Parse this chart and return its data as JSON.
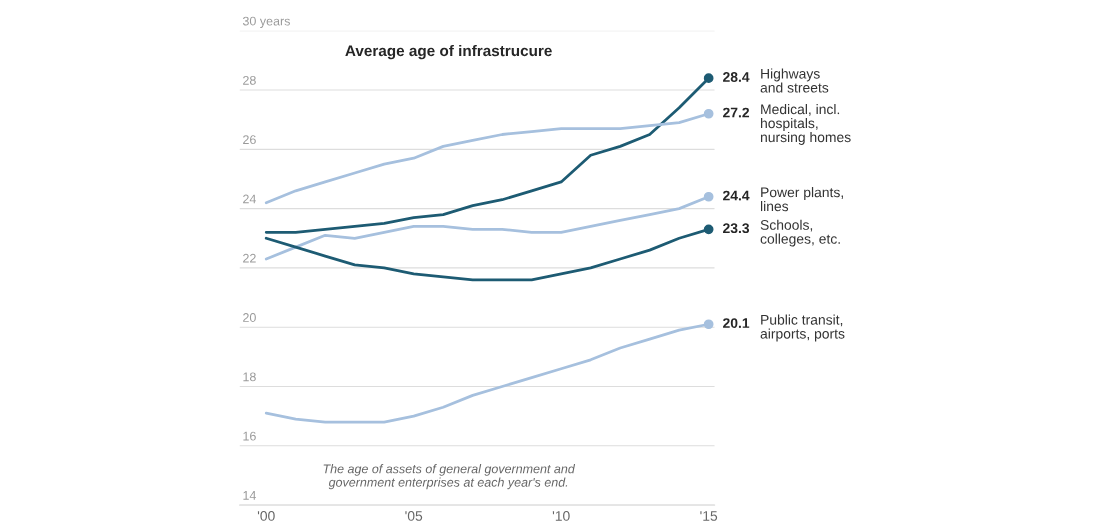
{
  "chart_data": {
    "type": "line",
    "title": "Average age of infrastrucure",
    "x": [
      2000,
      2001,
      2002,
      2003,
      2004,
      2005,
      2006,
      2007,
      2008,
      2009,
      2010,
      2011,
      2012,
      2013,
      2014,
      2015
    ],
    "series": [
      {
        "name": "Highways\nand streets",
        "color": "#1d5b73",
        "values": [
          23.2,
          23.2,
          23.3,
          23.4,
          23.5,
          23.7,
          23.8,
          24.1,
          24.3,
          24.6,
          24.9,
          25.8,
          26.1,
          26.5,
          27.4,
          28.4
        ],
        "value_labels": [
          null,
          null,
          null,
          null,
          null,
          null,
          null,
          null,
          null,
          null,
          null,
          null,
          null,
          null,
          null,
          "28.4"
        ]
      },
      {
        "name": "Medical, incl.\nhospitals,\nnursing homes",
        "color": "#a6c0de",
        "values": [
          24.2,
          24.6,
          24.9,
          25.2,
          25.5,
          25.7,
          26.1,
          26.3,
          26.5,
          26.6,
          26.7,
          26.7,
          26.7,
          26.8,
          26.9,
          27.2
        ],
        "value_labels": [
          null,
          null,
          null,
          null,
          null,
          null,
          null,
          null,
          null,
          null,
          null,
          null,
          null,
          null,
          null,
          "27.2"
        ]
      },
      {
        "name": "Power plants,\nlines",
        "color": "#a6c0de",
        "values": [
          22.3,
          22.7,
          23.1,
          23.0,
          23.2,
          23.4,
          23.4,
          23.3,
          23.3,
          23.2,
          23.2,
          23.4,
          23.6,
          23.8,
          24.0,
          24.4
        ],
        "value_labels": [
          null,
          null,
          null,
          null,
          null,
          null,
          null,
          null,
          null,
          null,
          null,
          null,
          null,
          null,
          null,
          "24.4"
        ]
      },
      {
        "name": "Schools,\ncolleges, etc.",
        "color": "#1d5b73",
        "values": [
          23.0,
          22.7,
          22.4,
          22.1,
          22.0,
          21.8,
          21.7,
          21.6,
          21.6,
          21.6,
          21.8,
          22.0,
          22.3,
          22.6,
          23.0,
          23.3
        ],
        "value_labels": [
          null,
          null,
          null,
          null,
          null,
          null,
          null,
          null,
          null,
          null,
          null,
          null,
          null,
          null,
          null,
          "23.3"
        ]
      },
      {
        "name": "Public transit,\nairports, ports",
        "color": "#a6c0de",
        "values": [
          17.1,
          16.9,
          16.8,
          16.8,
          16.8,
          17.0,
          17.3,
          17.7,
          18.0,
          18.3,
          18.6,
          18.9,
          19.3,
          19.6,
          19.9,
          20.1
        ],
        "value_labels": [
          null,
          null,
          null,
          null,
          null,
          null,
          null,
          null,
          null,
          null,
          null,
          null,
          null,
          null,
          null,
          "20.1"
        ]
      }
    ],
    "xlim": [
      1999.1,
      2015.2
    ],
    "xticks": [
      {
        "value": 2000,
        "label": "'00"
      },
      {
        "value": 2005,
        "label": "'05"
      },
      {
        "value": 2010,
        "label": "'10"
      },
      {
        "value": 2015,
        "label": "'15"
      }
    ],
    "ylim": [
      14,
      30
    ],
    "yticks": [
      14,
      16,
      18,
      20,
      22,
      24,
      26,
      28,
      {
        "value": 30,
        "label": "30 years"
      }
    ],
    "grid": "y",
    "legend": false,
    "line_style": "solid",
    "annotations": [
      "The age of assets of general government and\ngovernment enterprises at each year's end."
    ]
  }
}
